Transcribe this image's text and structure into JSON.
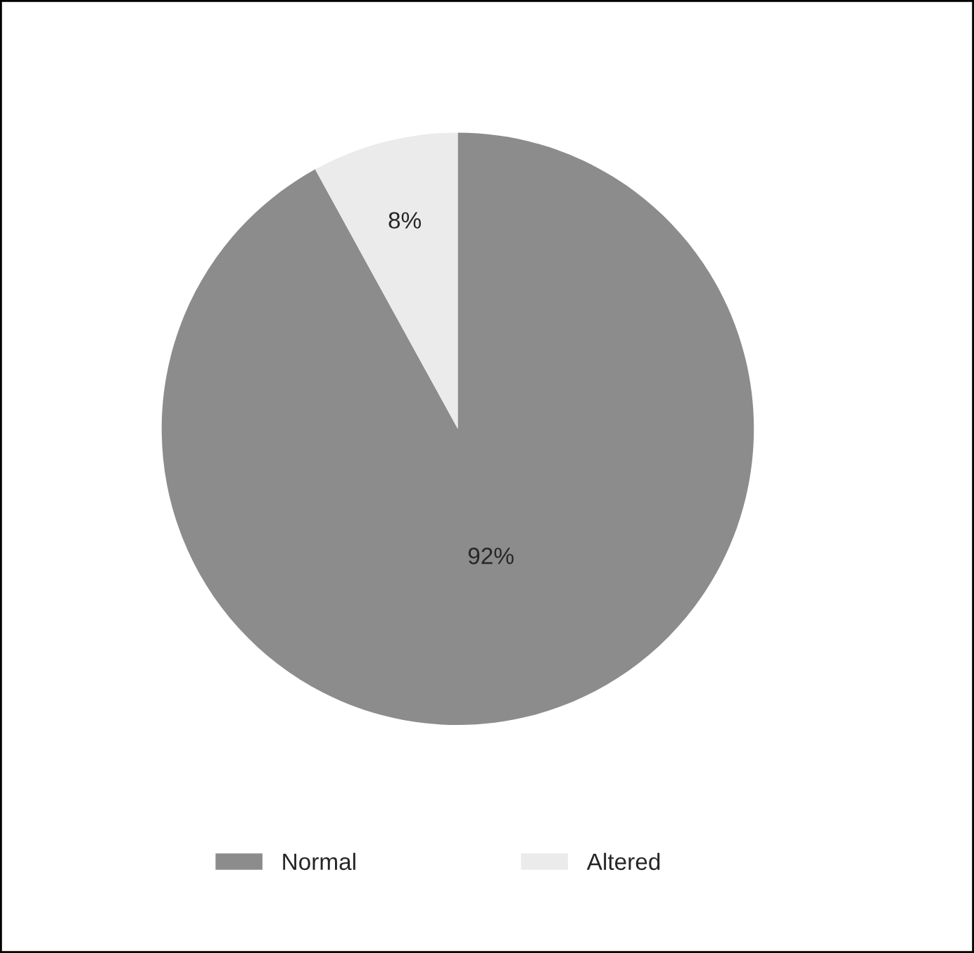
{
  "chart_data": {
    "type": "pie",
    "categories": [
      "Normal",
      "Altered"
    ],
    "values": [
      92,
      8
    ],
    "colors": [
      "#8c8c8c",
      "#ebebeb"
    ],
    "value_labels": [
      "92%",
      "8%"
    ],
    "legend": "bottom"
  }
}
